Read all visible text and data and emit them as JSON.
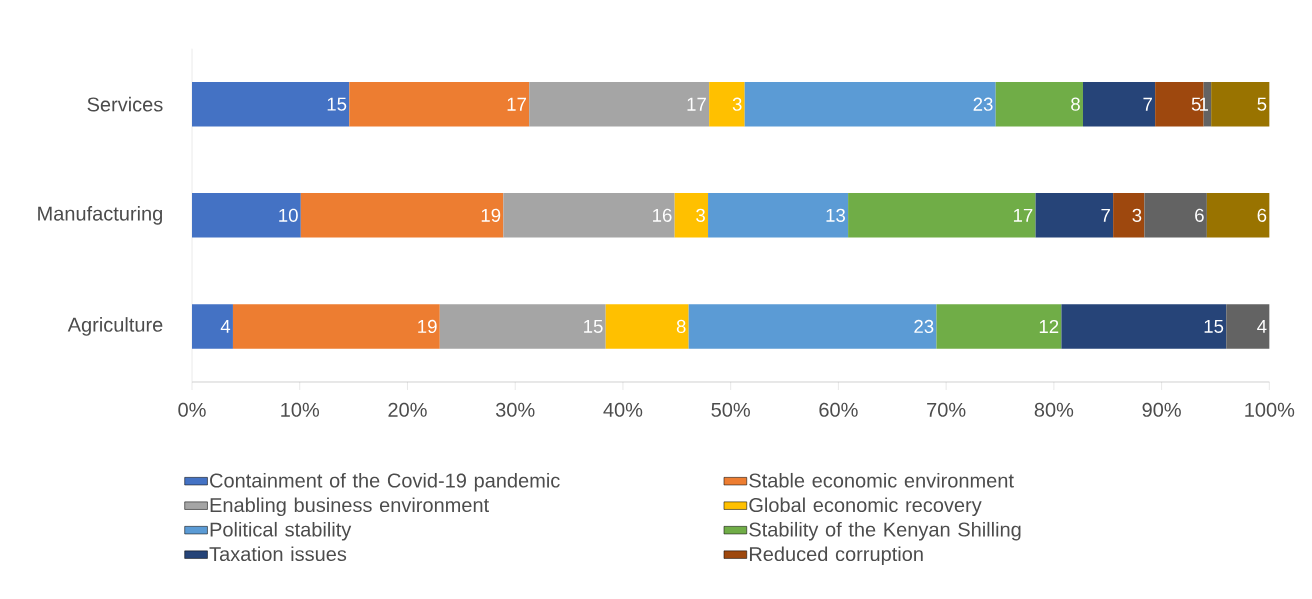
{
  "chart_data": {
    "type": "bar",
    "orientation": "horizontal",
    "stacked": true,
    "categories": [
      "Services",
      "Manufacturing",
      "Agriculture"
    ],
    "series": [
      {
        "name": "Containment of the Covid-19 pandemic",
        "color": "#4472c4",
        "values": [
          14.6,
          10.1,
          3.8
        ],
        "value_labels": [
          "15",
          "10",
          "4"
        ]
      },
      {
        "name": "Stable economic environment",
        "color": "#ed7d31",
        "values": [
          16.7,
          18.8,
          19.2
        ],
        "value_labels": [
          "17",
          "19",
          "19"
        ]
      },
      {
        "name": "Enabling business environment",
        "color": "#a5a5a5",
        "values": [
          16.7,
          15.9,
          15.4
        ],
        "value_labels": [
          "17",
          "16",
          "15"
        ]
      },
      {
        "name": "Global economic recovery",
        "color": "#ffc000",
        "values": [
          3.3,
          3.1,
          7.7
        ],
        "value_labels": [
          "3",
          "3",
          "8"
        ]
      },
      {
        "name": "Political stability",
        "color": "#5b9bd5",
        "values": [
          23.3,
          13.0,
          23.0
        ],
        "value_labels": [
          "23",
          "13",
          "23"
        ]
      },
      {
        "name": "Stability of the Kenyan Shilling",
        "color": "#70ad47",
        "values": [
          8.1,
          17.4,
          11.6
        ],
        "value_labels": [
          "8",
          "17",
          "12"
        ]
      },
      {
        "name": "Taxation issues",
        "color": "#264478",
        "values": [
          6.7,
          7.2,
          15.3
        ],
        "value_labels": [
          "7",
          "7",
          "15"
        ]
      },
      {
        "name": "Reduced corruption",
        "color": "#9e480e",
        "values": [
          4.5,
          2.9,
          null
        ],
        "value_labels": [
          "5",
          "3",
          null
        ]
      },
      {
        "color": "#636363",
        "values": [
          0.7,
          5.8,
          4.0
        ],
        "value_labels": [
          "1",
          "6",
          "4"
        ]
      },
      {
        "color": "#997300",
        "values": [
          5.4,
          5.8,
          null
        ],
        "value_labels": [
          "5",
          "6",
          null
        ]
      }
    ],
    "xlim": [
      0,
      100
    ],
    "xticks": [
      {
        "value": 0,
        "label": "0%"
      },
      {
        "value": 10,
        "label": "10%"
      },
      {
        "value": 20,
        "label": "20%"
      },
      {
        "value": 30,
        "label": "30%"
      },
      {
        "value": 40,
        "label": "40%"
      },
      {
        "value": 50,
        "label": "50%"
      },
      {
        "value": 60,
        "label": "60%"
      },
      {
        "value": 70,
        "label": "70%"
      },
      {
        "value": 80,
        "label": "80%"
      },
      {
        "value": 90,
        "label": "90%"
      },
      {
        "value": 100,
        "label": "100%"
      }
    ],
    "grid": false,
    "legend": "bottom"
  }
}
